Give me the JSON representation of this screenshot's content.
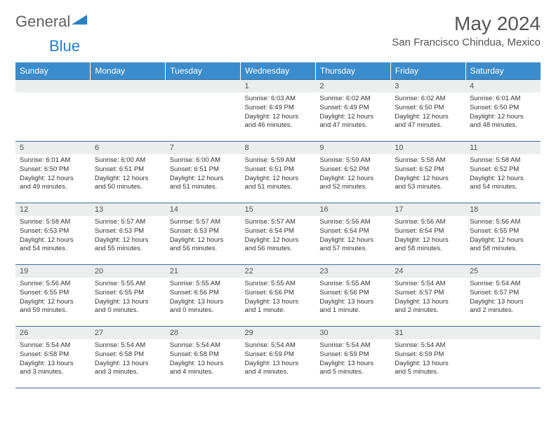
{
  "logo": {
    "text1": "General",
    "text2": "Blue"
  },
  "title": "May 2024",
  "location": "San Francisco Chindua, Mexico",
  "colors": {
    "header_bg": "#3b8ccc",
    "header_fg": "#ffffff",
    "row_border": "#3b6e9e",
    "daynum_bg": "#eceded",
    "text": "#333333",
    "title": "#555555",
    "logo_gray": "#606060",
    "logo_blue": "#2a7fc9"
  },
  "days_header": [
    "Sunday",
    "Monday",
    "Tuesday",
    "Wednesday",
    "Thursday",
    "Friday",
    "Saturday"
  ],
  "weeks": [
    [
      null,
      null,
      null,
      {
        "n": "1",
        "sr": "6:03 AM",
        "ss": "6:49 PM",
        "dl": "12 hours and 46 minutes."
      },
      {
        "n": "2",
        "sr": "6:02 AM",
        "ss": "6:49 PM",
        "dl": "12 hours and 47 minutes."
      },
      {
        "n": "3",
        "sr": "6:02 AM",
        "ss": "6:50 PM",
        "dl": "12 hours and 47 minutes."
      },
      {
        "n": "4",
        "sr": "6:01 AM",
        "ss": "6:50 PM",
        "dl": "12 hours and 48 minutes."
      }
    ],
    [
      {
        "n": "5",
        "sr": "6:01 AM",
        "ss": "6:50 PM",
        "dl": "12 hours and 49 minutes."
      },
      {
        "n": "6",
        "sr": "6:00 AM",
        "ss": "6:51 PM",
        "dl": "12 hours and 50 minutes."
      },
      {
        "n": "7",
        "sr": "6:00 AM",
        "ss": "6:51 PM",
        "dl": "12 hours and 51 minutes."
      },
      {
        "n": "8",
        "sr": "5:59 AM",
        "ss": "6:51 PM",
        "dl": "12 hours and 51 minutes."
      },
      {
        "n": "9",
        "sr": "5:59 AM",
        "ss": "6:52 PM",
        "dl": "12 hours and 52 minutes."
      },
      {
        "n": "10",
        "sr": "5:58 AM",
        "ss": "6:52 PM",
        "dl": "12 hours and 53 minutes."
      },
      {
        "n": "11",
        "sr": "5:58 AM",
        "ss": "6:52 PM",
        "dl": "12 hours and 54 minutes."
      }
    ],
    [
      {
        "n": "12",
        "sr": "5:58 AM",
        "ss": "6:53 PM",
        "dl": "12 hours and 54 minutes."
      },
      {
        "n": "13",
        "sr": "5:57 AM",
        "ss": "6:53 PM",
        "dl": "12 hours and 55 minutes."
      },
      {
        "n": "14",
        "sr": "5:57 AM",
        "ss": "6:53 PM",
        "dl": "12 hours and 56 minutes."
      },
      {
        "n": "15",
        "sr": "5:57 AM",
        "ss": "6:54 PM",
        "dl": "12 hours and 56 minutes."
      },
      {
        "n": "16",
        "sr": "5:56 AM",
        "ss": "6:54 PM",
        "dl": "12 hours and 57 minutes."
      },
      {
        "n": "17",
        "sr": "5:56 AM",
        "ss": "6:54 PM",
        "dl": "12 hours and 58 minutes."
      },
      {
        "n": "18",
        "sr": "5:56 AM",
        "ss": "6:55 PM",
        "dl": "12 hours and 58 minutes."
      }
    ],
    [
      {
        "n": "19",
        "sr": "5:56 AM",
        "ss": "6:55 PM",
        "dl": "12 hours and 59 minutes."
      },
      {
        "n": "20",
        "sr": "5:55 AM",
        "ss": "6:55 PM",
        "dl": "13 hours and 0 minutes."
      },
      {
        "n": "21",
        "sr": "5:55 AM",
        "ss": "6:56 PM",
        "dl": "13 hours and 0 minutes."
      },
      {
        "n": "22",
        "sr": "5:55 AM",
        "ss": "6:56 PM",
        "dl": "13 hours and 1 minute."
      },
      {
        "n": "23",
        "sr": "5:55 AM",
        "ss": "6:56 PM",
        "dl": "13 hours and 1 minute."
      },
      {
        "n": "24",
        "sr": "5:54 AM",
        "ss": "6:57 PM",
        "dl": "13 hours and 2 minutes."
      },
      {
        "n": "25",
        "sr": "5:54 AM",
        "ss": "6:57 PM",
        "dl": "13 hours and 2 minutes."
      }
    ],
    [
      {
        "n": "26",
        "sr": "5:54 AM",
        "ss": "6:58 PM",
        "dl": "13 hours and 3 minutes."
      },
      {
        "n": "27",
        "sr": "5:54 AM",
        "ss": "6:58 PM",
        "dl": "13 hours and 3 minutes."
      },
      {
        "n": "28",
        "sr": "5:54 AM",
        "ss": "6:58 PM",
        "dl": "13 hours and 4 minutes."
      },
      {
        "n": "29",
        "sr": "5:54 AM",
        "ss": "6:59 PM",
        "dl": "13 hours and 4 minutes."
      },
      {
        "n": "30",
        "sr": "5:54 AM",
        "ss": "6:59 PM",
        "dl": "13 hours and 5 minutes."
      },
      {
        "n": "31",
        "sr": "5:54 AM",
        "ss": "6:59 PM",
        "dl": "13 hours and 5 minutes."
      },
      null
    ]
  ],
  "labels": {
    "sunrise": "Sunrise:",
    "sunset": "Sunset:",
    "daylight": "Daylight:"
  }
}
